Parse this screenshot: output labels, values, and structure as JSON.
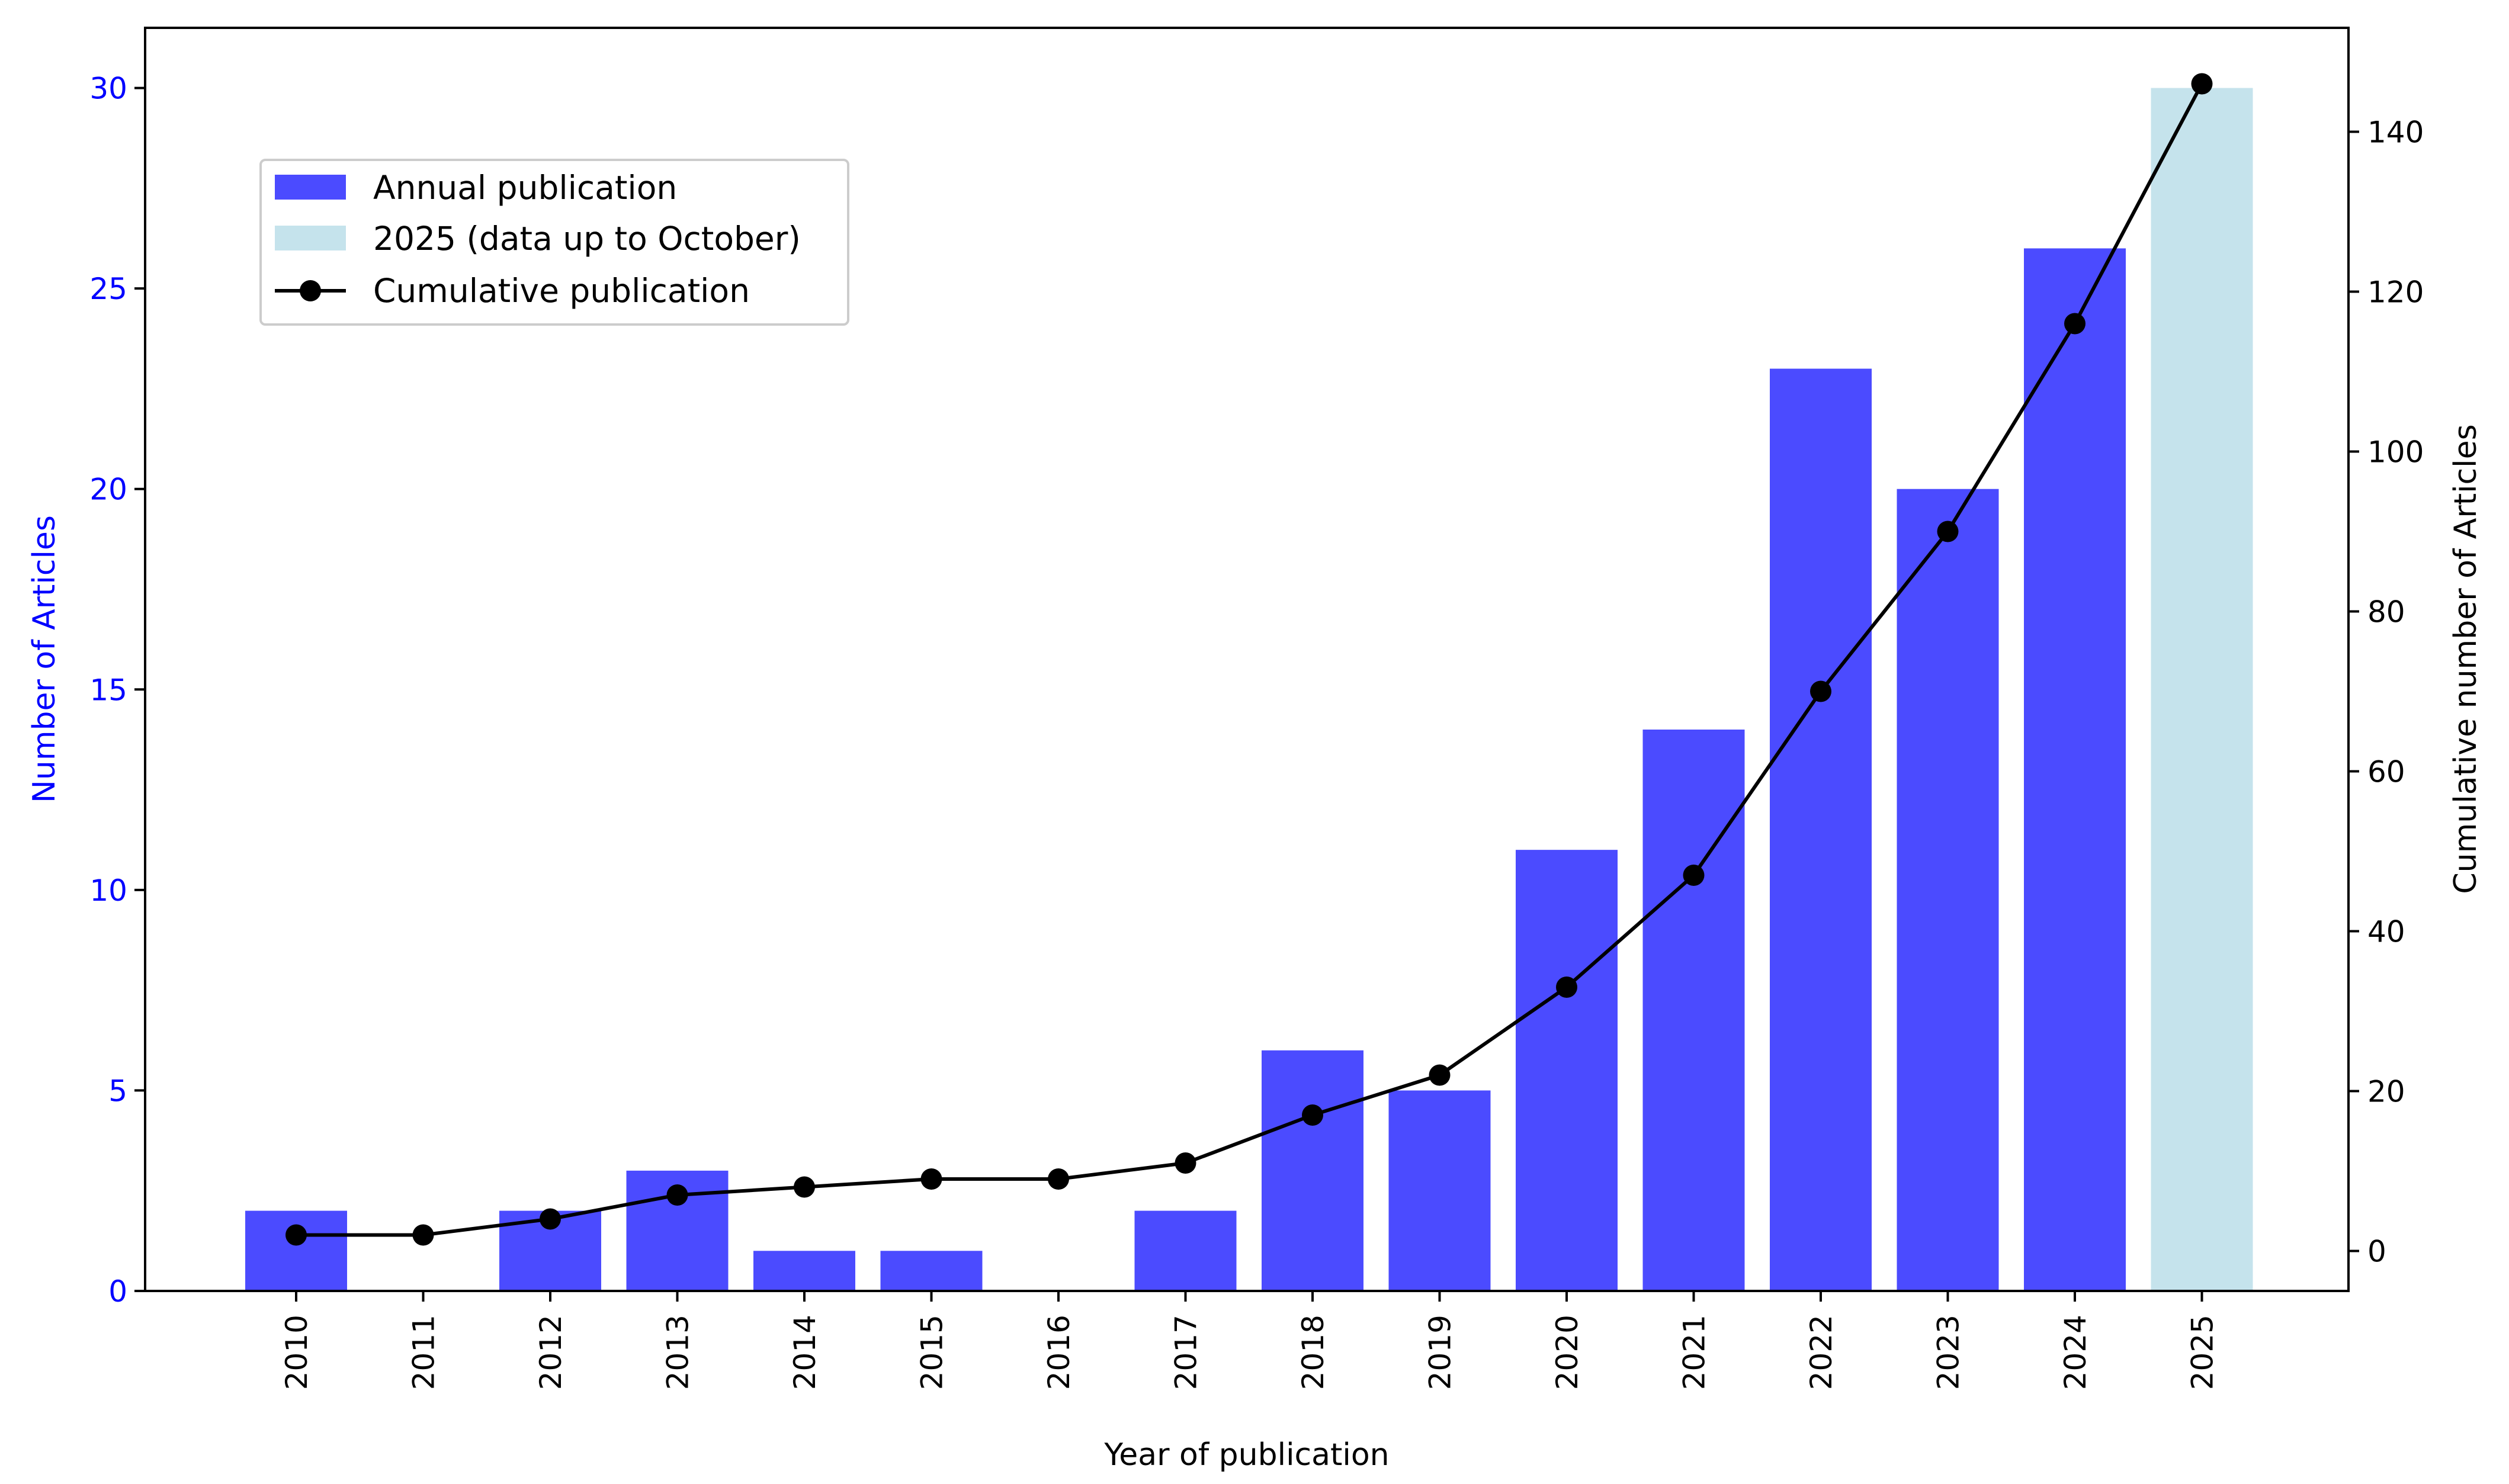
{
  "chart_data": {
    "type": "bar",
    "title": "",
    "xlabel": "Year of publication",
    "ylabel": "Number of Articles",
    "y2label": "Cumulative number of Articles",
    "categories": [
      "2010",
      "2011",
      "2012",
      "2013",
      "2014",
      "2015",
      "2016",
      "2017",
      "2018",
      "2019",
      "2020",
      "2021",
      "2022",
      "2023",
      "2024",
      "2025"
    ],
    "ylim": [
      0,
      31.5
    ],
    "y2lim": [
      -5,
      153
    ],
    "yticks": [
      0,
      5,
      10,
      15,
      20,
      25,
      30
    ],
    "y2ticks": [
      0,
      20,
      40,
      60,
      80,
      100,
      120,
      140
    ],
    "grid": false,
    "legend_position": "upper-left",
    "colors": {
      "annual": "#4b4bff",
      "partial": "#c5e3ec",
      "line": "#000000",
      "left_axis_text": "#0000ff",
      "right_axis_text": "#000000"
    },
    "series": [
      {
        "name": "Annual publication",
        "kind": "bar",
        "values": [
          2,
          0,
          2,
          3,
          1,
          1,
          0,
          2,
          6,
          5,
          11,
          14,
          23,
          20,
          26,
          null
        ]
      },
      {
        "name": "2025 (data up to October)",
        "kind": "bar",
        "values": [
          null,
          null,
          null,
          null,
          null,
          null,
          null,
          null,
          null,
          null,
          null,
          null,
          null,
          null,
          null,
          30
        ]
      },
      {
        "name": "Cumulative publication",
        "kind": "line",
        "axis": "right",
        "values": [
          2,
          2,
          4,
          7,
          8,
          9,
          9,
          11,
          17,
          22,
          33,
          47,
          70,
          90,
          116,
          146
        ]
      }
    ],
    "legend": [
      {
        "label": "Annual publication",
        "marker": "bar-annual"
      },
      {
        "label": "2025 (data up to October)",
        "marker": "bar-partial"
      },
      {
        "label": "Cumulative publication",
        "marker": "line"
      }
    ]
  }
}
